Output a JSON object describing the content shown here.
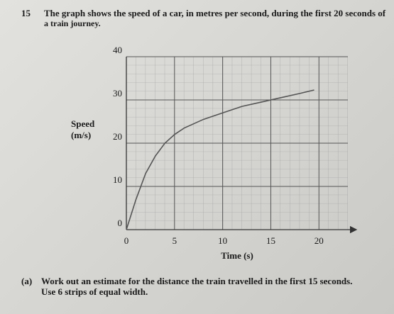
{
  "question": {
    "number": "15",
    "intro_line1": "The graph shows the speed of a car, in metres per second, during the first 20 seconds of",
    "intro_line2": "a train journey.",
    "part_label": "(a)",
    "part_text": "Work out an estimate for the distance the train travelled in the first 15 seconds.",
    "part_hint": "Use 6 strips of equal width."
  },
  "chart_data": {
    "type": "line",
    "xlabel": "Time (s)",
    "ylabel": [
      "Speed",
      "(m/s)"
    ],
    "x": [
      0,
      1,
      2,
      3,
      4,
      5,
      6,
      8,
      10,
      12,
      14,
      16,
      18,
      19.5
    ],
    "series": [
      {
        "color": "#555555",
        "values": [
          0,
          7,
          13,
          17,
          20,
          22,
          23.5,
          25.5,
          27,
          28.5,
          29.5,
          30.5,
          31.5,
          32.3
        ]
      }
    ],
    "xlim": [
      0,
      23
    ],
    "ylim": [
      0,
      40
    ],
    "xticks": [
      0,
      5,
      10,
      15,
      20
    ],
    "yticks": [
      0,
      10,
      20,
      30,
      40
    ],
    "grid": true
  }
}
